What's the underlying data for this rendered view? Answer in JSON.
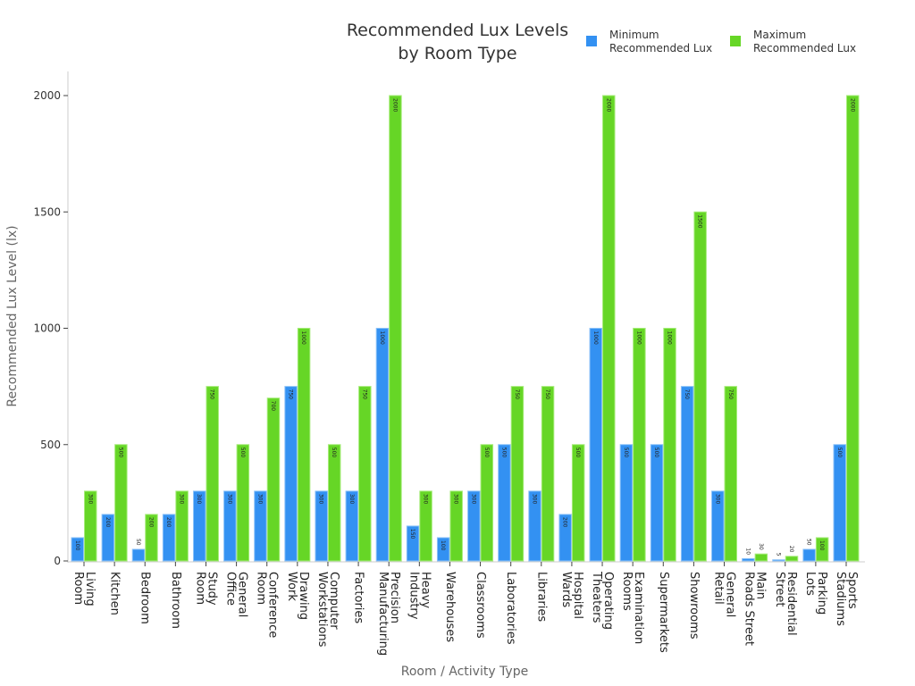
{
  "chart_data": {
    "type": "bar",
    "title": "Recommended Lux Levels\nby Room Type",
    "xlabel": "Room / Activity Type",
    "ylabel": "Recommended Lux Level (lx)",
    "ylim": [
      0,
      2100
    ],
    "yticks": [
      0,
      500,
      1000,
      1500,
      2000
    ],
    "grid": false,
    "legend_position": "top-right",
    "categories": [
      "Living Room",
      "Kitchen",
      "Bedroom",
      "Bathroom",
      "Study Room",
      "General Office",
      "Conference Room",
      "Drawing Work",
      "Computer Workstations",
      "Factories",
      "Precision Manufacturing",
      "Heavy Industry",
      "Warehouses",
      "Classrooms",
      "Laboratories",
      "Libraries",
      "Hospital Wards",
      "Operating Theaters",
      "Examination Rooms",
      "Supermarkets",
      "Showrooms",
      "General Retail",
      "Main Roads Street",
      "Residential Street",
      "Parking Lots",
      "Sports Stadiums"
    ],
    "series": [
      {
        "name": "Minimum Recommended Lux",
        "color": "#3391f2",
        "values": [
          100,
          200,
          50,
          200,
          300,
          300,
          300,
          750,
          300,
          300,
          1000,
          150,
          100,
          300,
          500,
          300,
          200,
          1000,
          500,
          500,
          750,
          300,
          10,
          5,
          50,
          500
        ]
      },
      {
        "name": "Maximum Recommended Lux",
        "color": "#66d626",
        "values": [
          300,
          500,
          200,
          300,
          750,
          500,
          700,
          1000,
          500,
          750,
          2000,
          300,
          300,
          500,
          750,
          750,
          500,
          2000,
          1000,
          1000,
          1500,
          750,
          30,
          20,
          100,
          2000
        ]
      }
    ]
  }
}
